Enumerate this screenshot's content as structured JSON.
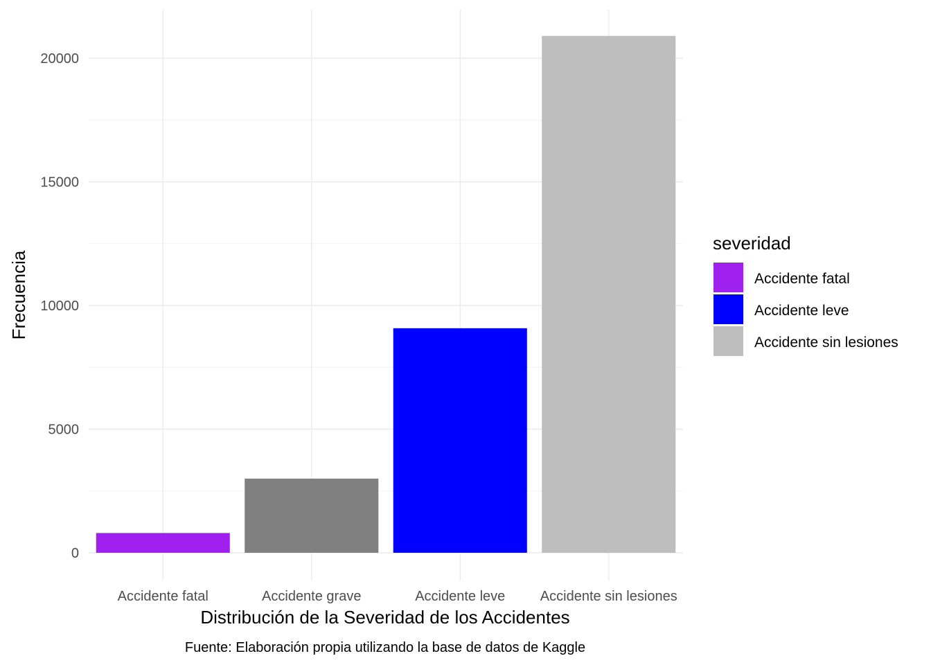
{
  "chart_data": {
    "type": "bar",
    "categories": [
      "Accidente fatal",
      "Accidente grave",
      "Accidente leve",
      "Accidente sin lesiones"
    ],
    "values": [
      800,
      3000,
      9080,
      20900
    ],
    "colors": [
      "#a020f0",
      "#808080",
      "#0000ff",
      "#bebebe"
    ],
    "xlabel": "Distribución de la Severidad de los Accidentes",
    "ylabel": "Frecuencia",
    "caption": "Fuente: Elaboración propia utilizando la base de datos de Kaggle",
    "ylim": [
      0,
      22000
    ],
    "yticks": [
      0,
      5000,
      10000,
      15000,
      20000
    ],
    "ytick_labels": [
      "0",
      "5000",
      "10000",
      "15000",
      "20000"
    ],
    "grid": true,
    "legend": {
      "title": "severidad",
      "position": "right",
      "items": [
        {
          "label": "Accidente fatal",
          "color": "#a020f0"
        },
        {
          "label": "Accidente leve",
          "color": "#0000ff"
        },
        {
          "label": "Accidente sin lesiones",
          "color": "#bebebe"
        }
      ]
    }
  }
}
